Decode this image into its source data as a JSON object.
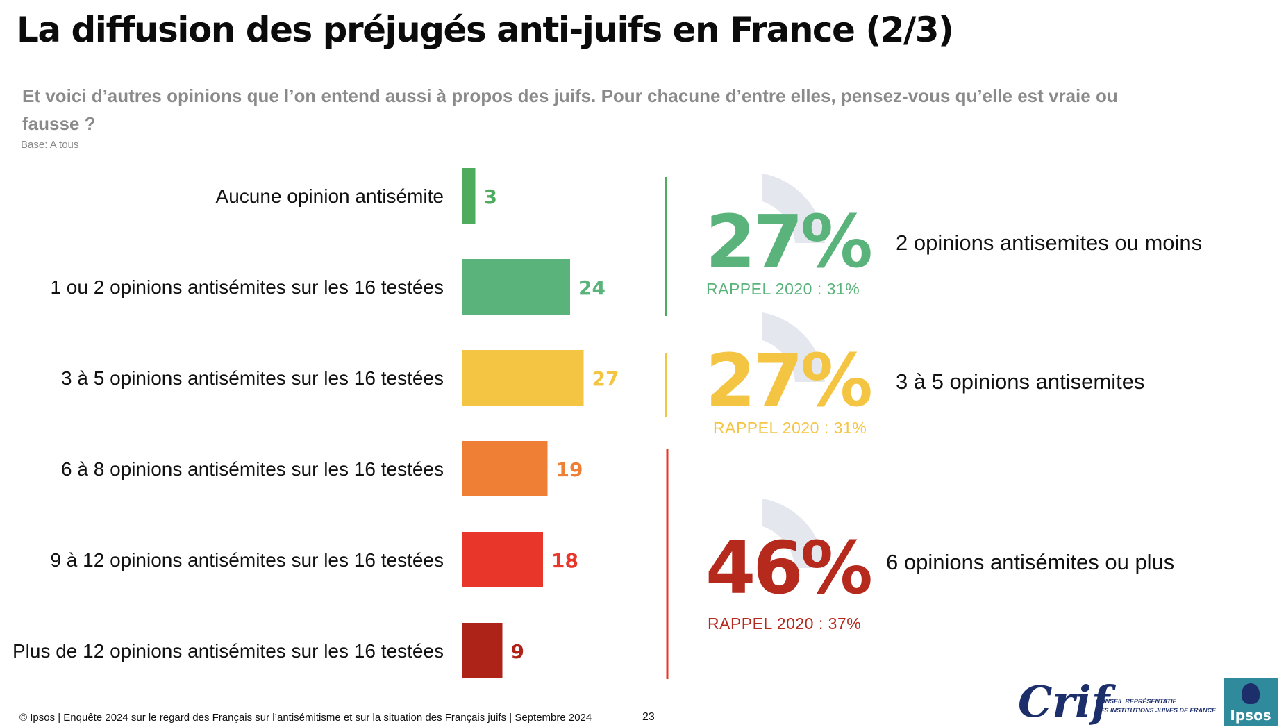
{
  "title": "La diffusion des préjugés anti-juifs en France (2/3)",
  "question": "Et voici d’autres opinions que l’on entend aussi à propos des juifs. Pour chacune d’entre elles, pensez-vous qu’elle est vraie ou fausse ?",
  "base": "Base: A tous",
  "chart_data": {
    "type": "bar",
    "orientation": "horizontal",
    "categories": [
      "Aucune opinion antisémite",
      "1 ou 2 opinions antisémites sur les 16 testées",
      "3 à 5 opinions antisémites sur les 16 testées",
      "6 à 8 opinions antisémites sur les 16 testées",
      "9 à 12 opinions antisémites sur les 16 testées",
      "Plus de 12 opinions antisémites sur les 16 testées"
    ],
    "values": [
      3,
      24,
      27,
      19,
      18,
      9
    ],
    "colors": [
      "#4fab5e",
      "#5ab37a",
      "#f4c443",
      "#ee7f35",
      "#e8372a",
      "#ae2318"
    ],
    "data_labels": true,
    "grid": false
  },
  "groups": [
    {
      "pct": "27%",
      "recall": "RAPPEL 2020 : 31%",
      "label": "2 opinions antisemites ou moins",
      "color": "#5ab37a"
    },
    {
      "pct": "27%",
      "recall": "RAPPEL 2020 : 31%",
      "label": "3 à 5 opinions antisemites",
      "color": "#f4c443"
    },
    {
      "pct": "46%",
      "recall": "RAPPEL 2020 : 37%",
      "label": "6 opinions antisémites ou plus",
      "color": "#b52a1d"
    }
  ],
  "footer": "© Ipsos | Enquête 2024 sur le regard des Français sur l’antisémitisme et sur la situation des Français juifs | Septembre 2024",
  "page_number": "23",
  "logos": {
    "crif": "Crif",
    "crif_subtitle_1": "CONSEIL REPRÉSENTATIF",
    "crif_subtitle_2": "DES INSTITUTIONS JUIVES DE FRANCE",
    "ipsos": "Ipsos"
  }
}
